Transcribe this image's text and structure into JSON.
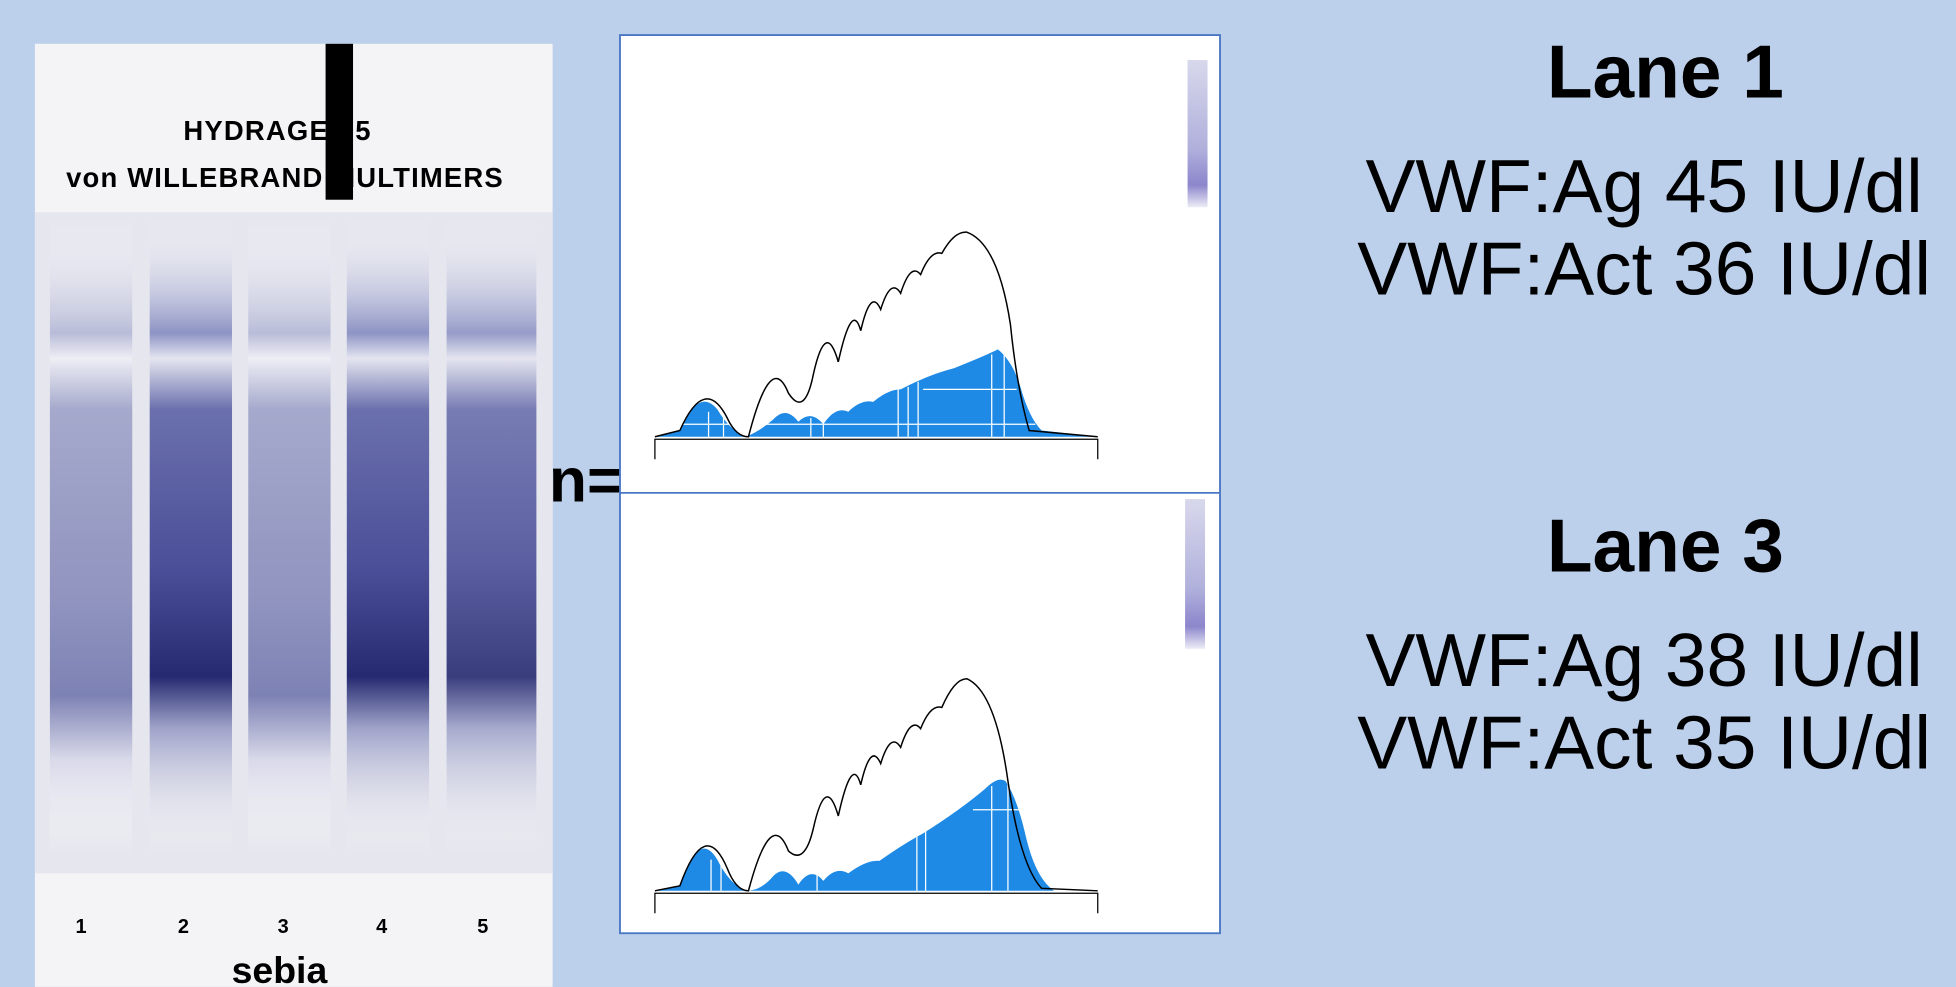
{
  "gel": {
    "title": "HYDRAGEL 5",
    "subtitle": "von WILLEBRAND MULTIMERS",
    "lanes": [
      "1",
      "2",
      "3",
      "4",
      "5"
    ],
    "brand": "sebia"
  },
  "fragment": "n=",
  "results": [
    {
      "title": "Lane 1",
      "lines": [
        "VWF:Ag 45 IU/dl",
        "VWF:Act 36 IU/dl"
      ]
    },
    {
      "title": "Lane 3",
      "lines": [
        "VWF:Ag 38 IU/dl",
        "VWF:Act 35 IU/dl"
      ]
    }
  ]
}
